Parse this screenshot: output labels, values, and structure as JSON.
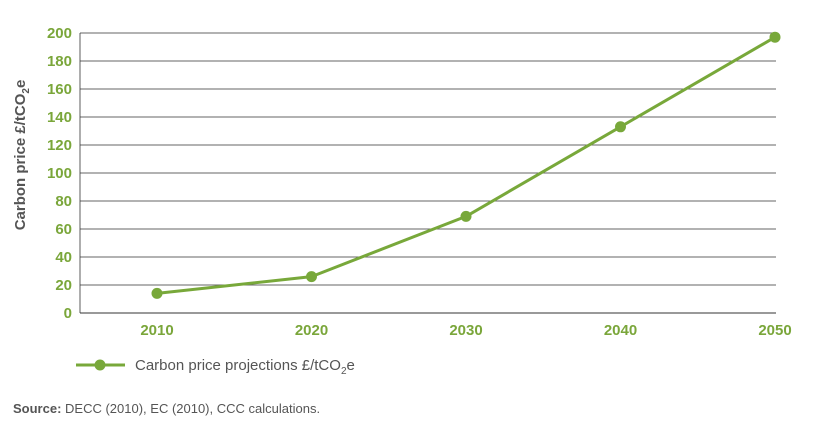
{
  "chart_data": {
    "type": "line",
    "ylabel_main": "Carbon price £/tCO",
    "ylabel_sub": "2",
    "ylabel_end": "e",
    "ylim": [
      0,
      200
    ],
    "y_ticks": [
      0,
      20,
      40,
      60,
      80,
      100,
      120,
      140,
      160,
      180,
      200
    ],
    "grid": true,
    "x": [
      "2010",
      "2020",
      "2030",
      "2040",
      "2050"
    ],
    "series": [
      {
        "legend_main": "Carbon price projections £/tCO",
        "legend_sub": "2",
        "legend_end": "e",
        "color": "#78a83a",
        "values": [
          14,
          26,
          69,
          133,
          197
        ]
      }
    ]
  },
  "source": {
    "label": "Source:",
    "text": " DECC (2010), EC (2010), CCC calculations."
  }
}
